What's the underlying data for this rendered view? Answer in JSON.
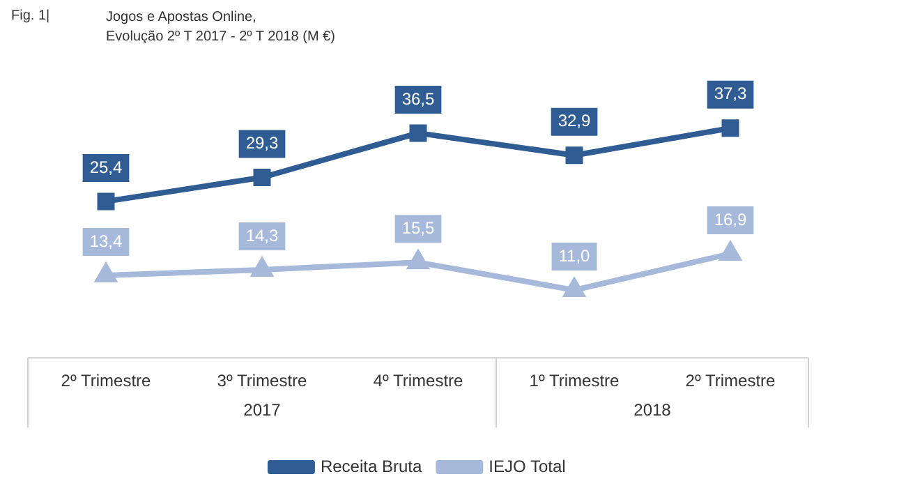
{
  "chart_data": {
    "type": "line",
    "title": "Jogos e Apostas Online,\nEvolução 2º T 2017 - 2º T 2018 (M €)",
    "annotations": [
      "Fig. 1|",
      "2017",
      "2018"
    ],
    "categories": [
      "2º Trimestre",
      "3º Trimestre",
      "4º Trimestre",
      "1º Trimestre",
      "2º Trimestre"
    ],
    "series": [
      {
        "name": "Receita Bruta",
        "color": "#2f5d93",
        "marker": "square",
        "values": [
          25.4,
          29.3,
          36.5,
          32.9,
          37.3
        ],
        "value_labels": [
          "25,4",
          "29,3",
          "36,5",
          "32,9",
          "37,3"
        ]
      },
      {
        "name": "IEJO Total",
        "color": "#a7b9da",
        "marker": "triangle",
        "values": [
          13.4,
          14.3,
          15.5,
          11.0,
          16.9
        ],
        "value_labels": [
          "13,4",
          "14,3",
          "15,5",
          "11,0",
          "16,9"
        ]
      }
    ],
    "grid": false,
    "legend": "bottom",
    "tick_labels": "x",
    "line_style": "solid"
  }
}
